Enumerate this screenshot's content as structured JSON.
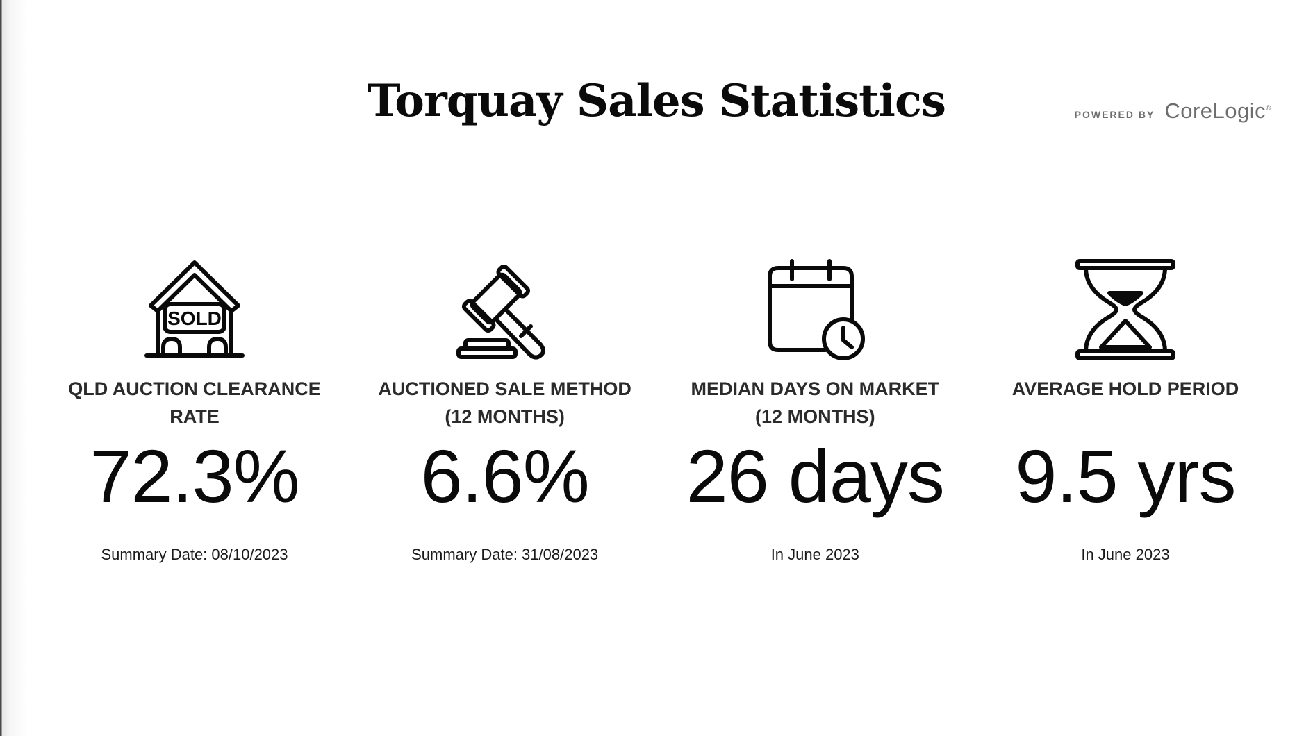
{
  "title": "Torquay Sales Statistics",
  "powered_by": {
    "label": "POWERED BY",
    "brand": "CoreLogic",
    "mark": "®"
  },
  "stats": [
    {
      "icon": "sold-house-icon",
      "icon_text": "SOLD",
      "label_line1": "QLD AUCTION CLEARANCE RATE",
      "label_line2": "",
      "value": "72.3%",
      "note": "Summary Date: 08/10/2023"
    },
    {
      "icon": "gavel-icon",
      "label_line1": "AUCTIONED SALE METHOD",
      "label_line2": "(12 MONTHS)",
      "value": "6.6%",
      "note": "Summary Date: 31/08/2023"
    },
    {
      "icon": "calendar-clock-icon",
      "label_line1": "MEDIAN DAYS ON MARKET",
      "label_line2": "(12 MONTHS)",
      "value": "26 days",
      "note": "In June 2023"
    },
    {
      "icon": "hourglass-icon",
      "label_line1": "AVERAGE HOLD PERIOD",
      "label_line2": "",
      "value": "9.5 yrs",
      "note": "In June 2023"
    }
  ]
}
